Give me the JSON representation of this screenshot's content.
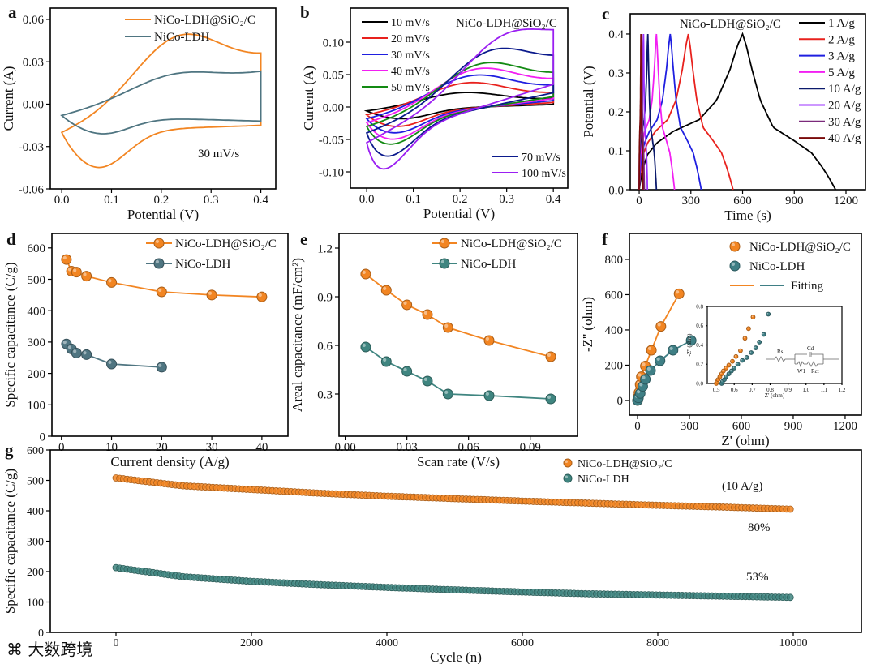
{
  "figure": {
    "watermark": "大数跨境"
  },
  "chart_data": [
    {
      "panel": "a",
      "type": "line",
      "xlabel": "Potential (V)",
      "ylabel": "Current (A)",
      "xlim": [
        -0.023,
        0.43
      ],
      "ylim": [
        -0.06,
        0.068
      ],
      "xticks": [
        0,
        0.1,
        0.2,
        0.3,
        0.4
      ],
      "xtick_labels": [
        "0.0",
        "0.1",
        "0.2",
        "0.3",
        "0.4"
      ],
      "yticks": [
        -0.06,
        -0.03,
        0,
        0.03,
        0.06
      ],
      "ytick_labels": [
        "-0.06",
        "-0.03",
        "0.00",
        "0.03",
        "0.06"
      ],
      "annotations": [
        "30 mV/s"
      ],
      "series": [
        {
          "name": "NiCo-LDH@SiO₂/C",
          "color": "#f28522",
          "start": -0.02,
          "anodic_peak": [
            0.23,
            0.048
          ],
          "cathodic_peak": [
            0.075,
            -0.045
          ],
          "end_upper": 0.031,
          "end_lower": -0.015
        },
        {
          "name": "NiCo-LDH",
          "color": "#4f7581",
          "start": -0.008,
          "anodic_peak": [
            0.22,
            0.021
          ],
          "cathodic_peak": [
            0.08,
            -0.021
          ],
          "end_upper": 0.022,
          "end_lower": -0.012
        }
      ]
    },
    {
      "panel": "b",
      "type": "line",
      "xlabel": "Potential (V)",
      "ylabel": "Current (A)",
      "xlim": [
        -0.035,
        0.431
      ],
      "ylim": [
        -0.125,
        0.1525
      ],
      "xticks": [
        0,
        0.1,
        0.2,
        0.3,
        0.4
      ],
      "xtick_labels": [
        "0.0",
        "0.1",
        "0.2",
        "0.3",
        "0.4"
      ],
      "yticks": [
        -0.1,
        -0.05,
        0,
        0.05,
        0.1
      ],
      "ytick_labels": [
        "-0.10",
        "-0.05",
        "0.00",
        "0.05",
        "0.10"
      ],
      "annotations": [
        "NiCo-LDH@SiO₂/C"
      ],
      "series": [
        {
          "name": "10 mV/s",
          "color": "#000000",
          "start": -0.006,
          "anodic_peak": [
            0.2,
            0.022
          ],
          "cathodic_peak": [
            0.08,
            -0.018
          ],
          "end_upper": 0.012,
          "end_lower": 0.004
        },
        {
          "name": "20 mV/s",
          "color": "#e8211d",
          "start": -0.012,
          "anodic_peak": [
            0.21,
            0.037
          ],
          "cathodic_peak": [
            0.07,
            -0.03
          ],
          "end_upper": 0.02,
          "end_lower": 0.007
        },
        {
          "name": "30 mV/s",
          "color": "#1f1fe0",
          "start": -0.018,
          "anodic_peak": [
            0.22,
            0.048
          ],
          "cathodic_peak": [
            0.065,
            -0.04
          ],
          "end_upper": 0.03,
          "end_lower": 0.01
        },
        {
          "name": "40 mV/s",
          "color": "#f21ff2",
          "start": -0.024,
          "anodic_peak": [
            0.23,
            0.058
          ],
          "cathodic_peak": [
            0.06,
            -0.05
          ],
          "end_upper": 0.038,
          "end_lower": 0.013
        },
        {
          "name": "50 mV/s",
          "color": "#138a13",
          "start": -0.03,
          "anodic_peak": [
            0.24,
            0.066
          ],
          "cathodic_peak": [
            0.055,
            -0.058
          ],
          "end_upper": 0.045,
          "end_lower": 0.016
        },
        {
          "name": "70 mV/s",
          "color": "#0b1a8c",
          "start": -0.04,
          "anodic_peak": [
            0.26,
            0.086
          ],
          "cathodic_peak": [
            0.045,
            -0.078
          ],
          "end_upper": 0.065,
          "end_lower": 0.022
        },
        {
          "name": "100 mV/s",
          "color": "#9b1ff2",
          "start": -0.055,
          "anodic_peak": [
            0.29,
            0.11
          ],
          "cathodic_peak": [
            0.03,
            -0.102
          ],
          "end_upper": 0.095,
          "end_lower": 0.035
        }
      ]
    },
    {
      "panel": "c",
      "type": "line",
      "xlabel": "Time (s)",
      "ylabel": "Potential (V)",
      "xlim": [
        -52,
        1313
      ],
      "ylim": [
        0,
        0.452
      ],
      "xticks": [
        0,
        300,
        600,
        900,
        1200
      ],
      "xtick_labels": [
        "0",
        "300",
        "600",
        "900",
        "1200"
      ],
      "yticks": [
        0,
        0.1,
        0.2,
        0.3,
        0.4
      ],
      "ytick_labels": [
        "0.0",
        "0.1",
        "0.2",
        "0.3",
        "0.4"
      ],
      "annotations": [
        "NiCo-LDH@SiO₂/C"
      ],
      "series": [
        {
          "name": "1 A/g",
          "color": "#000000",
          "charge_end": 600,
          "discharge_end": 1140
        },
        {
          "name": "2 A/g",
          "color": "#e8211d",
          "charge_end": 285,
          "discharge_end": 545
        },
        {
          "name": "3 A/g",
          "color": "#1f1fe0",
          "charge_end": 180,
          "discharge_end": 360
        },
        {
          "name": "5 A/g",
          "color": "#f21ff2",
          "charge_end": 100,
          "discharge_end": 205
        },
        {
          "name": "10 A/g",
          "color": "#0b1a6c",
          "charge_end": 50,
          "discharge_end": 100
        },
        {
          "name": "20 A/g",
          "color": "#9b30ff",
          "charge_end": 25,
          "discharge_end": 48
        },
        {
          "name": "30 A/g",
          "color": "#7b2a7b",
          "charge_end": 15,
          "discharge_end": 30
        },
        {
          "name": "40 A/g",
          "color": "#7a0a0a",
          "charge_end": 10,
          "discharge_end": 22
        }
      ]
    },
    {
      "panel": "d",
      "type": "line",
      "xlabel": "Current density (A/g)",
      "ylabel": "Specific capacitance (C/g)",
      "xlim": [
        -1.9,
        45.2
      ],
      "ylim": [
        0,
        646
      ],
      "xticks": [
        0,
        10,
        20,
        30,
        40
      ],
      "xtick_labels": [
        "0",
        "10",
        "20",
        "30",
        "40"
      ],
      "yticks": [
        0,
        100,
        200,
        300,
        400,
        500,
        600
      ],
      "ytick_labels": [
        "0",
        "100",
        "200",
        "300",
        "400",
        "500",
        "600"
      ],
      "series": [
        {
          "name": "NiCo-LDH@SiO₂/C",
          "color": "#f28522",
          "x": [
            1,
            2,
            3,
            5,
            10,
            20,
            30,
            40
          ],
          "y": [
            563,
            526,
            523,
            510,
            490,
            460,
            450,
            444
          ]
        },
        {
          "name": "NiCo-LDH",
          "color": "#4f7581",
          "x": [
            1,
            2,
            3,
            5,
            10,
            20
          ],
          "y": [
            294,
            278,
            265,
            260,
            230,
            220
          ]
        }
      ]
    },
    {
      "panel": "e",
      "type": "line",
      "xlabel": "Scan rate (V/s)",
      "ylabel": "Areal capacitance (mF/cm²)",
      "xlim": [
        -0.003,
        0.113
      ],
      "ylim": [
        0.04,
        1.29
      ],
      "xticks": [
        0,
        0.03,
        0.06,
        0.09
      ],
      "xtick_labels": [
        "0.00",
        "0.03",
        "0.06",
        "0.09"
      ],
      "yticks": [
        0.3,
        0.6,
        0.9,
        1.2
      ],
      "ytick_labels": [
        "0.3",
        "0.6",
        "0.9",
        "1.2"
      ],
      "series": [
        {
          "name": "NiCo-LDH@SiO₂/C",
          "color": "#f28522",
          "x": [
            0.01,
            0.02,
            0.03,
            0.04,
            0.05,
            0.07,
            0.1
          ],
          "y": [
            1.04,
            0.94,
            0.85,
            0.79,
            0.71,
            0.63,
            0.53
          ]
        },
        {
          "name": "NiCo-LDH",
          "color": "#3f8580",
          "x": [
            0.01,
            0.02,
            0.03,
            0.04,
            0.05,
            0.07,
            0.1
          ],
          "y": [
            0.59,
            0.5,
            0.44,
            0.38,
            0.3,
            0.29,
            0.27
          ]
        }
      ]
    },
    {
      "panel": "f",
      "type": "scatter",
      "xlabel": "Z' (ohm)",
      "ylabel": "-Z'' (ohm)",
      "xlim": [
        -47,
        1294
      ],
      "ylim": [
        -83,
        947
      ],
      "xticks": [
        0,
        300,
        600,
        900,
        1200
      ],
      "xtick_labels": [
        "0",
        "300",
        "600",
        "900",
        "1200"
      ],
      "yticks": [
        0,
        200,
        400,
        600,
        800
      ],
      "ytick_labels": [
        "0",
        "200",
        "400",
        "600",
        "800"
      ],
      "fitting_label": "Fitting",
      "series": [
        {
          "name": "NiCo-LDH@SiO₂/C",
          "color": "#f28522",
          "x": [
            0,
            3,
            8,
            15,
            22,
            45,
            80,
            135,
            240
          ],
          "y": [
            0,
            20,
            45,
            90,
            135,
            195,
            285,
            420,
            605
          ]
        },
        {
          "name": "NiCo-LDH",
          "color": "#3f7f85",
          "x": [
            0,
            5,
            15,
            30,
            45,
            75,
            130,
            205,
            310
          ],
          "y": [
            0,
            15,
            40,
            80,
            120,
            170,
            225,
            285,
            340
          ]
        }
      ],
      "inset": {
        "xlabel": "Z' (ohm)",
        "ylabel": "-Z'' (ohm)",
        "xlim": [
          0.45,
          1.2
        ],
        "ylim": [
          0,
          0.8
        ],
        "xticks": [
          0.5,
          0.6,
          0.7,
          0.8,
          0.9,
          1.0,
          1.1,
          1.2
        ],
        "xtick_labels": [
          "0.5",
          "0.6",
          "0.7",
          "0.8",
          "0.9",
          "1.0",
          "1.1",
          "1.2"
        ],
        "yticks": [
          0,
          0.2,
          0.4,
          0.6,
          0.8
        ],
        "ytick_labels": [
          "0.0",
          "0.2",
          "0.4",
          "0.6",
          "0.8"
        ],
        "circuit_labels": [
          "Rs",
          "Cd",
          "W1",
          "Rct"
        ],
        "series": [
          {
            "name": "NiCo-LDH@SiO₂/C",
            "color": "#f28522",
            "x": [
              0.5,
              0.505,
              0.51,
              0.52,
              0.53,
              0.54,
              0.555,
              0.57,
              0.59,
              0.61,
              0.635,
              0.66,
              0.68,
              0.705
            ],
            "y": [
              0,
              0.02,
              0.04,
              0.07,
              0.1,
              0.13,
              0.16,
              0.19,
              0.23,
              0.28,
              0.34,
              0.47,
              0.57,
              0.69
            ]
          },
          {
            "name": "NiCo-LDH",
            "color": "#3f7f85",
            "x": [
              0.53,
              0.535,
              0.545,
              0.555,
              0.57,
              0.585,
              0.6,
              0.62,
              0.645,
              0.67,
              0.695,
              0.72,
              0.74,
              0.765,
              0.79
            ],
            "y": [
              0,
              0.02,
              0.04,
              0.07,
              0.1,
              0.13,
              0.16,
              0.2,
              0.24,
              0.27,
              0.32,
              0.37,
              0.43,
              0.51,
              0.72
            ]
          }
        ]
      }
    },
    {
      "panel": "g",
      "type": "scatter",
      "xlabel": "Cycle (n)",
      "ylabel": "Specific capacitance (C/g)",
      "xlim": [
        -970,
        11006
      ],
      "ylim": [
        0,
        600
      ],
      "xticks": [
        0,
        2000,
        4000,
        6000,
        8000,
        10000
      ],
      "xtick_labels": [
        "0",
        "2000",
        "4000",
        "6000",
        "8000",
        "10000"
      ],
      "yticks": [
        0,
        100,
        200,
        300,
        400,
        500,
        600
      ],
      "ytick_labels": [
        "0",
        "100",
        "200",
        "300",
        "400",
        "500",
        "600"
      ],
      "annotations": [
        "(10 A/g)",
        "80%",
        "53%"
      ],
      "series": [
        {
          "name": "NiCo-LDH@SiO₂/C",
          "color": "#f28522",
          "x": [
            0,
            1000,
            2000,
            3000,
            4000,
            5000,
            6000,
            7000,
            8000,
            9000,
            10000
          ],
          "y": [
            508,
            482,
            470,
            458,
            448,
            440,
            432,
            425,
            418,
            412,
            405
          ],
          "retention": "80%"
        },
        {
          "name": "NiCo-LDH",
          "color": "#3f8580",
          "x": [
            0,
            1000,
            2000,
            3000,
            4000,
            5000,
            6000,
            7000,
            8000,
            9000,
            10000
          ],
          "y": [
            213,
            183,
            168,
            157,
            148,
            140,
            133,
            127,
            123,
            119,
            115
          ],
          "retention": "53%"
        }
      ]
    }
  ]
}
